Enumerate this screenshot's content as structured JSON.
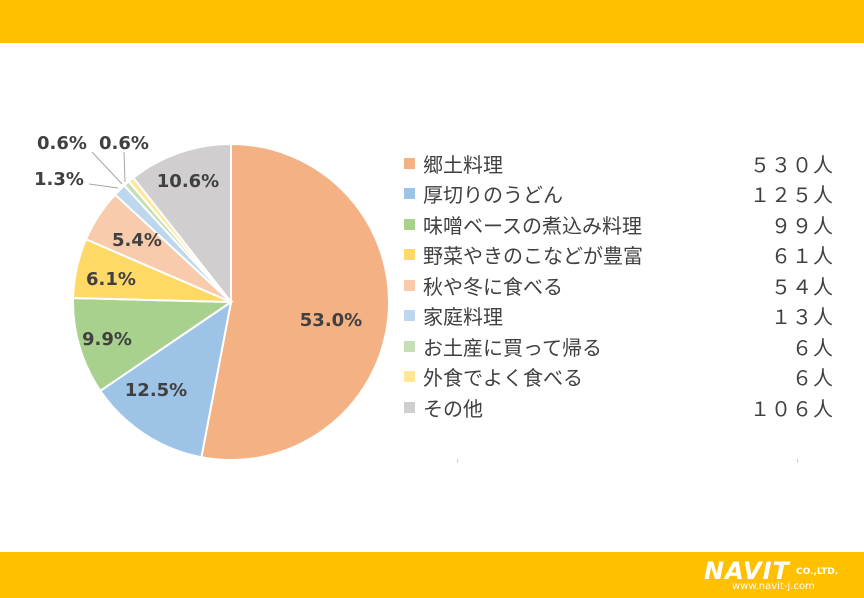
{
  "colors": {
    "band": "#ffc000",
    "label_text": "#404040",
    "slice_border": "#ffffff"
  },
  "chart_data": {
    "type": "pie",
    "title": "",
    "start_angle_deg": 0,
    "direction": "clockwise",
    "legend_position": "right",
    "slices": [
      {
        "label": "郷土料理",
        "count": "５３０人",
        "percent": 53.0,
        "percent_label": "53.0%",
        "color": "#f4b183"
      },
      {
        "label": "厚切りのうどん",
        "count": "１２５人",
        "percent": 12.5,
        "percent_label": "12.5%",
        "color": "#9dc3e6"
      },
      {
        "label": "味噌ベースの煮込み料理",
        "count": "９９人",
        "percent": 9.9,
        "percent_label": "9.9%",
        "color": "#a9d18e"
      },
      {
        "label": "野菜やきのこなどが豊富",
        "count": "６１人",
        "percent": 6.1,
        "percent_label": "6.1%",
        "color": "#ffd966"
      },
      {
        "label": "秋や冬に食べる",
        "count": "５４人",
        "percent": 5.4,
        "percent_label": "5.4%",
        "color": "#f8cbad"
      },
      {
        "label": "家庭料理",
        "count": "１３人",
        "percent": 1.3,
        "percent_label": "1.3%",
        "color": "#bdd7ee"
      },
      {
        "label": "お土産に買って帰る",
        "count": "６人",
        "percent": 0.6,
        "percent_label": "0.6%",
        "color": "#c5e0b4"
      },
      {
        "label": "外食でよく食べる",
        "count": "６人",
        "percent": 0.6,
        "percent_label": "0.6%",
        "color": "#ffe699"
      },
      {
        "label": "その他",
        "count": "１０６人",
        "percent": 10.6,
        "percent_label": "10.6%",
        "color": "#d0cece"
      }
    ]
  },
  "logo": {
    "name": "NAVIT",
    "suffix": "CO.,LTD.",
    "url": "www.navit-j.com"
  }
}
